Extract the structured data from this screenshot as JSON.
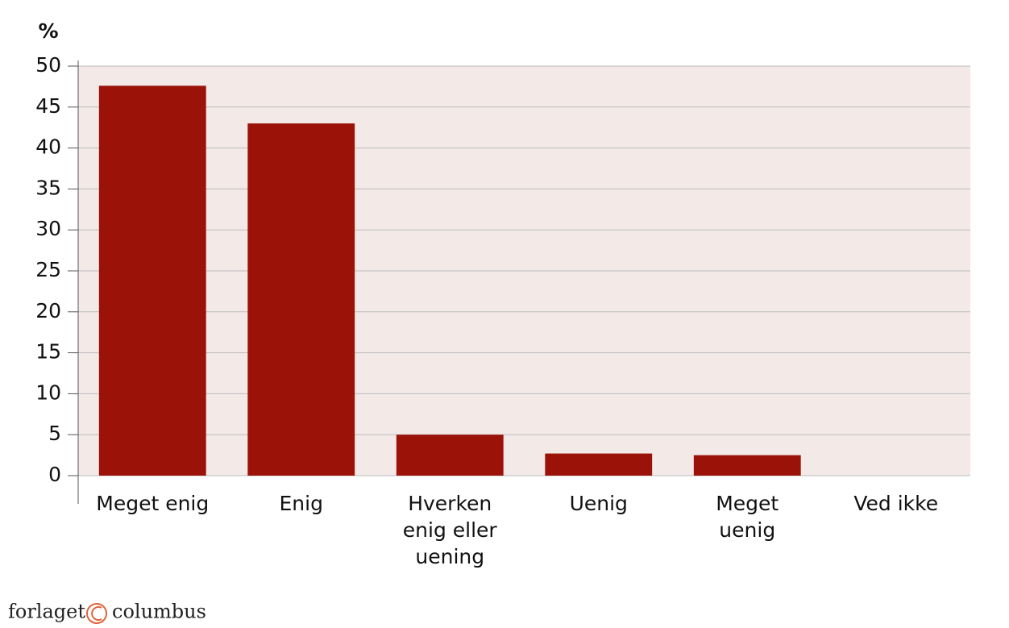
{
  "chart_data": {
    "type": "bar",
    "y_label": "%",
    "categories": [
      "Meget enig",
      "Enig",
      "Hverken\nenig eller\nuening",
      "Uenig",
      "Meget\nuenig",
      "Ved ikke"
    ],
    "values": [
      47.6,
      43,
      5,
      2.7,
      2.5,
      0
    ],
    "color": "#9a1208",
    "ylim": [
      0,
      50
    ],
    "yticks": [
      0,
      5,
      10,
      15,
      20,
      25,
      30,
      35,
      40,
      45,
      50
    ],
    "grid": true
  },
  "footer": {
    "left": "forlaget",
    "right": "columbus"
  }
}
